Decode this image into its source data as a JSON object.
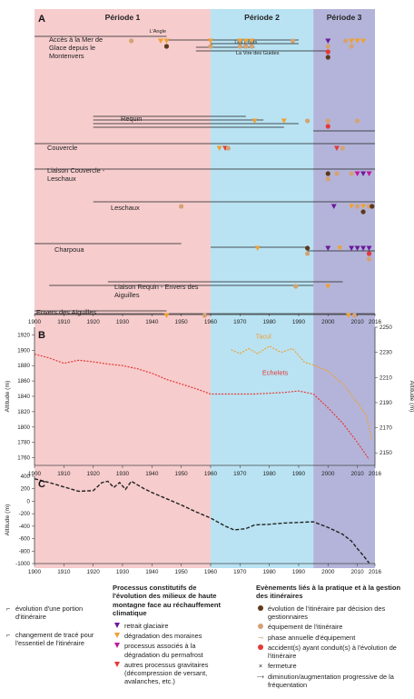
{
  "chart_data": [
    {
      "panel": "A",
      "type": "timeline",
      "periods": [
        {
          "label": "Période 1",
          "start": 1900,
          "end": 1960,
          "color": "#f6cccd"
        },
        {
          "label": "Période 2",
          "start": 1960,
          "end": 1995,
          "color": "#b9e3f3"
        },
        {
          "label": "Période 3",
          "start": 1995,
          "end": 2016,
          "color": "#b4b4da"
        }
      ],
      "x_ticks": [
        "1900",
        "1910",
        "1920",
        "1930",
        "1940",
        "1950",
        "1960",
        "1970",
        "1980",
        "1990",
        "2000",
        "2010",
        "2016"
      ],
      "xlim": [
        1900,
        2016
      ],
      "routes": [
        {
          "label": "Accès à la Mer de Glace depuis le Montenvers",
          "sublabels": [
            {
              "text": "L'Angle",
              "x": 1942
            },
            {
              "text": "Les Ponts",
              "x": 1972
            },
            {
              "text": "La Vire des Guides",
              "x": 1976
            }
          ],
          "lines": [
            [
              1900,
              1945
            ],
            [
              1945,
              1990
            ],
            [
              1960,
              1990
            ],
            [
              1955,
              1975
            ],
            [
              1955,
              2000
            ]
          ],
          "events": [
            {
              "year": 1933,
              "kind": "equipment"
            },
            {
              "year": 1943,
              "kind": "moraine"
            },
            {
              "year": 1945,
              "kind": "moraine"
            },
            {
              "year": 1945,
              "kind": "decision"
            },
            {
              "year": 1960,
              "kind": "moraine"
            },
            {
              "year": 1960,
              "kind": "equipment"
            },
            {
              "year": 1970,
              "kind": "moraine"
            },
            {
              "year": 1970,
              "kind": "equipment"
            },
            {
              "year": 1972,
              "kind": "moraine"
            },
            {
              "year": 1974,
              "kind": "moraine"
            },
            {
              "year": 1972,
              "kind": "equipment"
            },
            {
              "year": 1974,
              "kind": "equipment"
            },
            {
              "year": 1988,
              "kind": "equipment"
            },
            {
              "year": 2000,
              "kind": "glacial"
            },
            {
              "year": 2000,
              "kind": "equipment"
            },
            {
              "year": 2000,
              "kind": "accident"
            },
            {
              "year": 2000,
              "kind": "decision"
            },
            {
              "year": 2006,
              "kind": "equipment"
            },
            {
              "year": 2008,
              "kind": "moraine"
            },
            {
              "year": 2008,
              "kind": "equipment"
            },
            {
              "year": 2010,
              "kind": "moraine"
            },
            {
              "year": 2012,
              "kind": "moraine"
            }
          ]
        },
        {
          "label": "Requin",
          "lines": [
            [
              1920,
              1972
            ],
            [
              1920,
              1978
            ],
            [
              1920,
              1990
            ],
            [
              1920,
              1985
            ],
            [
              1995,
              2016
            ]
          ],
          "events": [
            {
              "year": 1975,
              "kind": "moraine"
            },
            {
              "year": 1985,
              "kind": "moraine"
            },
            {
              "year": 1993,
              "kind": "equipment"
            },
            {
              "year": 2000,
              "kind": "equipment"
            },
            {
              "year": 2000,
              "kind": "accident"
            },
            {
              "year": 2010,
              "kind": "equipment"
            }
          ]
        },
        {
          "label": "Couvercle",
          "lines": [
            [
              1900,
              2016
            ]
          ],
          "events": [
            {
              "year": 1963,
              "kind": "moraine"
            },
            {
              "year": 1965,
              "kind": "gravity"
            },
            {
              "year": 1966,
              "kind": "equipment"
            },
            {
              "year": 2003,
              "kind": "gravity"
            },
            {
              "year": 2005,
              "kind": "equipment"
            }
          ]
        },
        {
          "label": "Liaison Couvercle - Leschaux",
          "lines": [
            [
              1900,
              2016
            ]
          ],
          "events": [
            {
              "year": 2000,
              "kind": "decision"
            },
            {
              "year": 2000,
              "kind": "equipment"
            },
            {
              "year": 2003,
              "kind": "equipment"
            },
            {
              "year": 2008,
              "kind": "equipment"
            },
            {
              "year": 2010,
              "kind": "permafrost"
            },
            {
              "year": 2012,
              "kind": "glacial"
            },
            {
              "year": 2014,
              "kind": "permafrost"
            }
          ]
        },
        {
          "label": "Leschaux",
          "lines": [
            [
              1920,
              2016
            ]
          ],
          "events": [
            {
              "year": 1950,
              "kind": "equipment"
            },
            {
              "year": 2002,
              "kind": "glacial"
            },
            {
              "year": 2008,
              "kind": "moraine"
            },
            {
              "year": 2012,
              "kind": "moraine"
            },
            {
              "year": 2010,
              "kind": "equipment"
            },
            {
              "year": 2012,
              "kind": "decision"
            },
            {
              "year": 2014,
              "kind": "equipment"
            },
            {
              "year": 2015,
              "kind": "decision"
            }
          ]
        },
        {
          "label": "Charpoua",
          "lines": [
            [
              1900,
              1950
            ],
            [
              1960,
              1993
            ],
            [
              1993,
              2016
            ]
          ],
          "events": [
            {
              "year": 1976,
              "kind": "moraine"
            },
            {
              "year": 1993,
              "kind": "decision"
            },
            {
              "year": 1993,
              "kind": "equipment"
            },
            {
              "year": 2000,
              "kind": "glacial"
            },
            {
              "year": 2004,
              "kind": "moraine"
            },
            {
              "year": 2008,
              "kind": "glacial"
            },
            {
              "year": 2010,
              "kind": "glacial"
            },
            {
              "year": 2012,
              "kind": "glacial"
            },
            {
              "year": 2014,
              "kind": "glacial"
            },
            {
              "year": 2014,
              "kind": "accident"
            },
            {
              "year": 2014,
              "kind": "equipment"
            }
          ]
        },
        {
          "label": "Liaison Requin - Envers des Aiguilles",
          "lines": [
            [
              1925,
              2005
            ],
            [
              1905,
              1995
            ]
          ],
          "events": [
            {
              "year": 1989,
              "kind": "equipment"
            },
            {
              "year": 2000,
              "kind": "moraine"
            }
          ]
        },
        {
          "label": "Envers des Aiguilles",
          "lines": [
            [
              1900,
              1945
            ],
            [
              1900,
              2016
            ]
          ],
          "events": [
            {
              "year": 1945,
              "kind": "moraine"
            },
            {
              "year": 1958,
              "kind": "equipment"
            },
            {
              "year": 2007,
              "kind": "moraine"
            },
            {
              "year": 2009,
              "kind": "equipment"
            }
          ]
        }
      ]
    },
    {
      "panel": "B",
      "type": "line",
      "ylabel": "Altitude (m)",
      "ylabel_right": "Altitude (m)",
      "ylim": [
        1750,
        1930
      ],
      "ylim_right": [
        2140,
        2250
      ],
      "y_ticks": [
        "1760",
        "1780",
        "1800",
        "1820",
        "1840",
        "1860",
        "1880",
        "1900",
        "1920"
      ],
      "y_ticks_right": [
        "2150",
        "2170",
        "2190",
        "2210",
        "2230",
        "2250"
      ],
      "x_ticks": [
        "1900",
        "1910",
        "1920",
        "1930",
        "1940",
        "1950",
        "1960",
        "1970",
        "1980",
        "1990",
        "2000",
        "2010",
        "2016"
      ],
      "series": [
        {
          "name": "Echelets",
          "color": "#e53935",
          "axis": "left",
          "x": [
            1900,
            1905,
            1910,
            1915,
            1920,
            1925,
            1930,
            1935,
            1940,
            1945,
            1950,
            1955,
            1960,
            1965,
            1970,
            1975,
            1980,
            1985,
            1990,
            1995,
            2000,
            2005,
            2010,
            2014
          ],
          "y": [
            1895,
            1890,
            1883,
            1887,
            1885,
            1882,
            1880,
            1876,
            1870,
            1862,
            1856,
            1850,
            1843,
            1843,
            1843,
            1843,
            1844,
            1845,
            1847,
            1843,
            1825,
            1805,
            1780,
            1758
          ]
        },
        {
          "name": "Tacul",
          "color": "#f0a030",
          "axis": "right",
          "x": [
            1967,
            1970,
            1973,
            1976,
            1980,
            1984,
            1988,
            1992,
            1995,
            2000,
            2005,
            2010,
            2013,
            2015
          ],
          "y": [
            2232,
            2229,
            2233,
            2229,
            2235,
            2230,
            2233,
            2222,
            2220,
            2215,
            2205,
            2190,
            2180,
            2160
          ]
        }
      ]
    },
    {
      "panel": "C",
      "type": "line",
      "ylabel": "Altitude (m)",
      "ylim": [
        -1000,
        400
      ],
      "y_ticks": [
        "400",
        "200",
        "0",
        "-200",
        "-400",
        "-600",
        "-800",
        "-1000"
      ],
      "x_ticks": [
        "1900",
        "1910",
        "1920",
        "1930",
        "1940",
        "1950",
        "1960",
        "1970",
        "1980",
        "1990",
        "2000",
        "2010",
        "2016"
      ],
      "series": [
        {
          "name": "",
          "color": "#222222",
          "x": [
            1900,
            1905,
            1910,
            1915,
            1920,
            1923,
            1925,
            1927,
            1929,
            1931,
            1933,
            1937,
            1940,
            1945,
            1950,
            1955,
            1960,
            1965,
            1968,
            1972,
            1975,
            1980,
            1985,
            1990,
            1995,
            2000,
            2005,
            2008,
            2010,
            2012,
            2014
          ],
          "y": [
            360,
            300,
            230,
            160,
            170,
            300,
            320,
            220,
            300,
            190,
            320,
            210,
            140,
            40,
            -60,
            -170,
            -270,
            -400,
            -460,
            -440,
            -380,
            -370,
            -350,
            -340,
            -330,
            -420,
            -530,
            -640,
            -760,
            -870,
            -990
          ]
        }
      ]
    }
  ],
  "panel_letters": [
    "A",
    "B",
    "C"
  ],
  "legend": {
    "line_items": [
      {
        "label": "évolution d'une portion d'itinéraire"
      },
      {
        "label": "changement de tracé pour l'essentiel de l'itinéraire"
      }
    ],
    "processes": {
      "title": "Processus constitutifs de l'évolution des milieux de haute montagne face au réchauffement climatique",
      "items": [
        {
          "label": "retrait glaciaire",
          "color": "#6a1b9a"
        },
        {
          "label": "dégradation des moraines",
          "color": "#f0a030"
        },
        {
          "label": "processus associés à la dégradation du permafrost",
          "color": "#c2189e"
        },
        {
          "label": "autres processus gravitaires (décompression de versant, avalanches, etc.)",
          "color": "#e53935"
        }
      ]
    },
    "events": {
      "title": "Evènements liés à la pratique et à la gestion des itinéraires",
      "items": [
        {
          "label": "évolution de l'itinéraire par décision des gestionnaires",
          "color": "#5d3a1a"
        },
        {
          "label": "équipement de l'itinéraire",
          "color": "#d4a373"
        },
        {
          "label": "phase annuelle d'équipement",
          "color": "#d4a373"
        },
        {
          "label": "accident(s) ayant conduit(s) à l'évolution de l'itinéraire",
          "color": "#e53935"
        },
        {
          "label": "fermeture"
        },
        {
          "label": "diminution/augmentation progressive de la fréquentation"
        }
      ]
    }
  }
}
